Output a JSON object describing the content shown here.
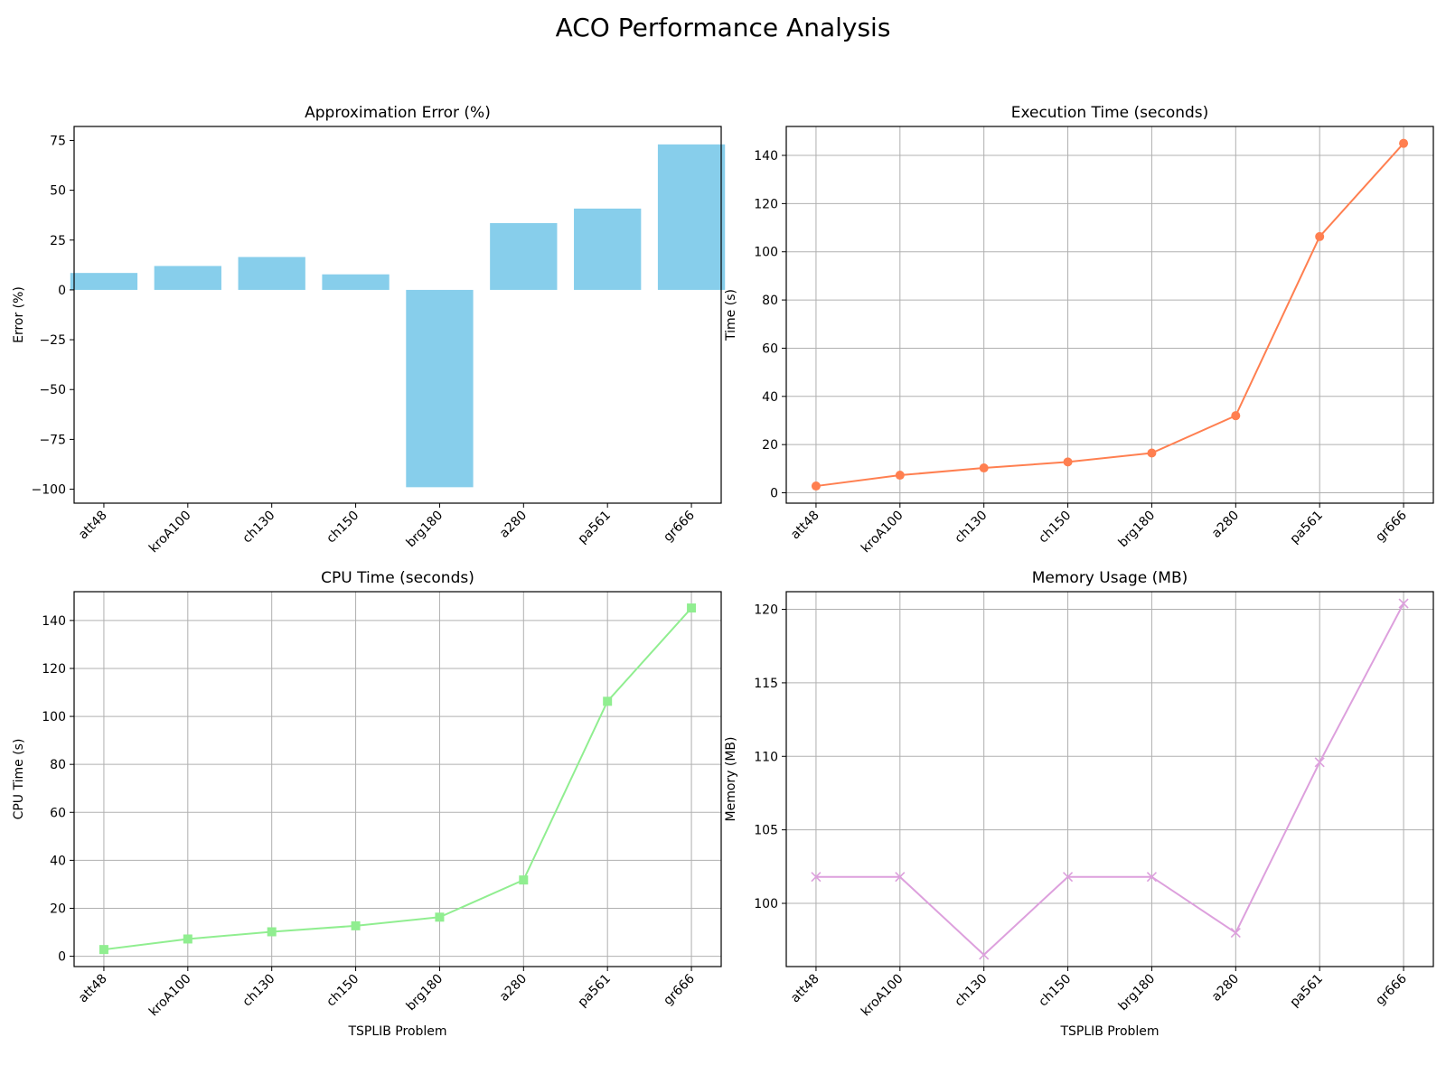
{
  "figure": {
    "suptitle": "ACO Performance Analysis"
  },
  "chart_data": [
    {
      "type": "bar",
      "title": "Approximation Error (%)",
      "xlabel": "",
      "ylabel": "Error (%)",
      "categories": [
        "att48",
        "kroA100",
        "ch130",
        "ch150",
        "brg180",
        "a280",
        "pa561",
        "gr666"
      ],
      "values": [
        8.5,
        12,
        16.5,
        7.8,
        -99,
        33.5,
        40.8,
        73
      ],
      "ylim": [
        -107,
        82
      ],
      "yticks": [
        -100,
        -75,
        -50,
        -25,
        0,
        25,
        50,
        75
      ],
      "grid": false,
      "color": "#87CEEB"
    },
    {
      "type": "line",
      "title": "Execution Time (seconds)",
      "xlabel": "",
      "ylabel": "Time (s)",
      "categories": [
        "att48",
        "kroA100",
        "ch130",
        "ch150",
        "brg180",
        "a280",
        "pa561",
        "gr666"
      ],
      "values": [
        2.8,
        7.3,
        10.3,
        12.8,
        16.5,
        32,
        106.3,
        145
      ],
      "ylim": [
        -4.3,
        152
      ],
      "yticks": [
        0,
        20,
        40,
        60,
        80,
        100,
        120,
        140
      ],
      "grid": true,
      "marker": "circle",
      "color": "#FF7F50"
    },
    {
      "type": "line",
      "title": "CPU Time (seconds)",
      "xlabel": "TSPLIB Problem",
      "ylabel": "CPU Time (s)",
      "categories": [
        "att48",
        "kroA100",
        "ch130",
        "ch150",
        "brg180",
        "a280",
        "pa561",
        "gr666"
      ],
      "values": [
        2.8,
        7.2,
        10.2,
        12.7,
        16.3,
        31.8,
        106.3,
        145.2
      ],
      "ylim": [
        -4.3,
        152
      ],
      "yticks": [
        0,
        20,
        40,
        60,
        80,
        100,
        120,
        140
      ],
      "grid": true,
      "marker": "square",
      "color": "#90EE90"
    },
    {
      "type": "line",
      "title": "Memory Usage (MB)",
      "xlabel": "TSPLIB Problem",
      "ylabel": "Memory (MB)",
      "categories": [
        "att48",
        "kroA100",
        "ch130",
        "ch150",
        "brg180",
        "a280",
        "pa561",
        "gr666"
      ],
      "values": [
        101.8,
        101.8,
        96.5,
        101.8,
        101.8,
        98,
        109.6,
        120.4
      ],
      "ylim": [
        95.7,
        121.2
      ],
      "yticks": [
        100,
        105,
        110,
        115,
        120
      ],
      "grid": true,
      "marker": "x",
      "color": "#DDA0DD"
    }
  ]
}
